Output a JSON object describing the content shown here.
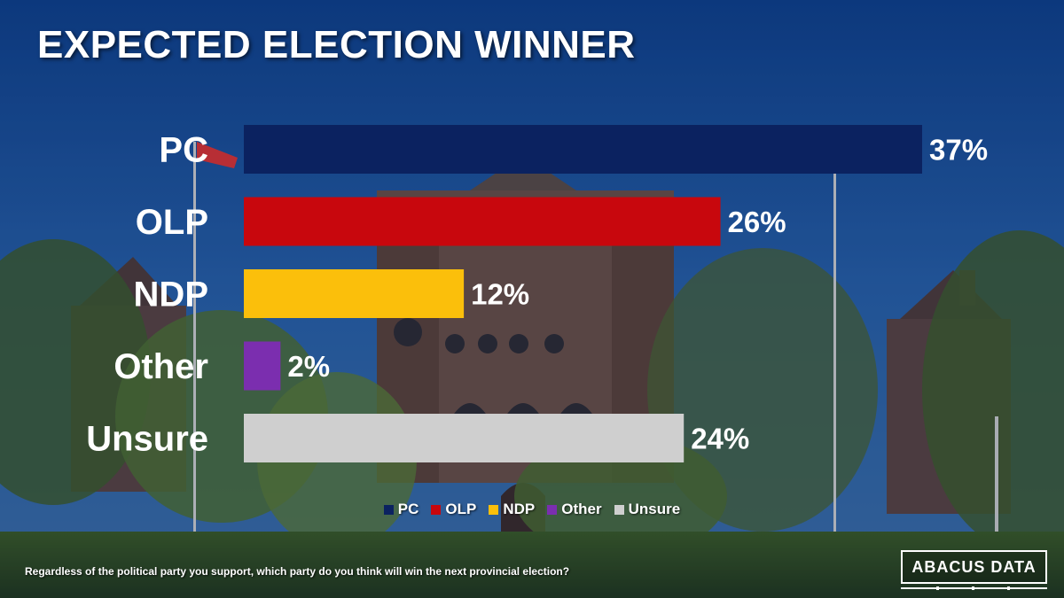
{
  "title": "EXPECTED ELECTION WINNER",
  "chart_data": {
    "type": "bar",
    "orientation": "horizontal",
    "title": "EXPECTED ELECTION WINNER",
    "categories": [
      "PC",
      "OLP",
      "NDP",
      "Other",
      "Unsure"
    ],
    "values": [
      37,
      26,
      12,
      2,
      24
    ],
    "value_labels": [
      "37%",
      "26%",
      "12%",
      "2%",
      "24%"
    ],
    "colors": [
      "#0b2260",
      "#c8070d",
      "#fbbf0b",
      "#7b2eaf",
      "#cfcfcf"
    ],
    "xlim": [
      0,
      37
    ],
    "grid": false,
    "legend_position": "bottom-center"
  },
  "legend": [
    {
      "label": "PC",
      "color": "#0b2260"
    },
    {
      "label": "OLP",
      "color": "#c8070d"
    },
    {
      "label": "NDP",
      "color": "#fbbf0b"
    },
    {
      "label": "Other",
      "color": "#7b2eaf"
    },
    {
      "label": "Unsure",
      "color": "#cfcfcf"
    }
  ],
  "question": "Regardless of the political party you support, which party do you think will win the next provincial election?",
  "logo": {
    "text": "ABACUS DATA"
  }
}
